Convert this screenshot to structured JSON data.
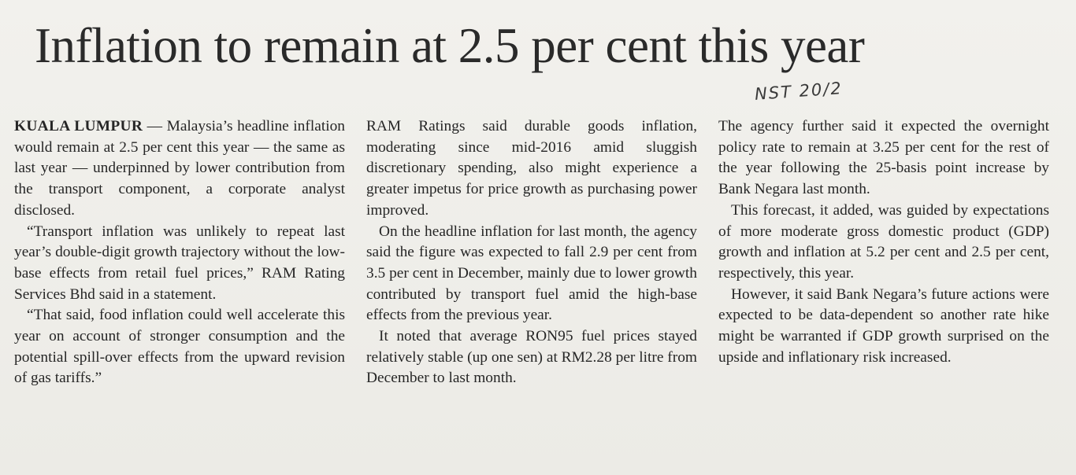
{
  "headline": "Inflation to remain at 2.5 per cent this year",
  "handwritten_note": "NST 20/2",
  "columns": [
    {
      "paragraphs": [
        {
          "dateline": "KUALA LUMPUR",
          "text": "— Malaysia’s headline inflation would remain at 2.5 per cent this year — the same as last year — underpinned by lower contribution from the transport component, a corporate analyst disclosed."
        },
        {
          "text": "“Transport inflation was unlikely to repeat last year’s double-digit growth trajectory without the low-base effects from retail fuel prices,” RAM Rating Services Bhd said in a statement."
        },
        {
          "text": "“That said, food inflation could well accelerate this year on account of stronger consumption and the potential spill-over effects from the upward revision of gas tariffs.”"
        }
      ]
    },
    {
      "paragraphs": [
        {
          "text": "RAM Ratings said durable goods inflation, moderating since mid-2016 amid sluggish discretionary spending, also might experience a greater impetus for price growth as purchasing power improved."
        },
        {
          "text": "On the headline inflation for last month, the agency said the figure was expected to fall 2.9 per cent from 3.5 per cent in December, mainly due to lower growth contributed by transport fuel amid the high-base effects from the previous year."
        },
        {
          "text": "It noted that average RON95 fuel prices stayed relatively stable (up one sen) at RM2.28 per litre from December to last month."
        }
      ]
    },
    {
      "paragraphs": [
        {
          "text": "The agency further said it expected the overnight policy rate to remain at 3.25 per cent for the rest of the year following the 25-basis point increase by Bank Negara last month."
        },
        {
          "text": "This forecast, it added, was guided by expectations of more moderate gross domestic product (GDP) growth and inflation at 5.2 per cent and 2.5 per cent, respectively, this year."
        },
        {
          "text": "However, it said Bank Negara’s future actions were expected to be data-dependent so another rate hike might be warranted if GDP growth surprised on the upside and inflationary risk increased."
        }
      ]
    }
  ]
}
